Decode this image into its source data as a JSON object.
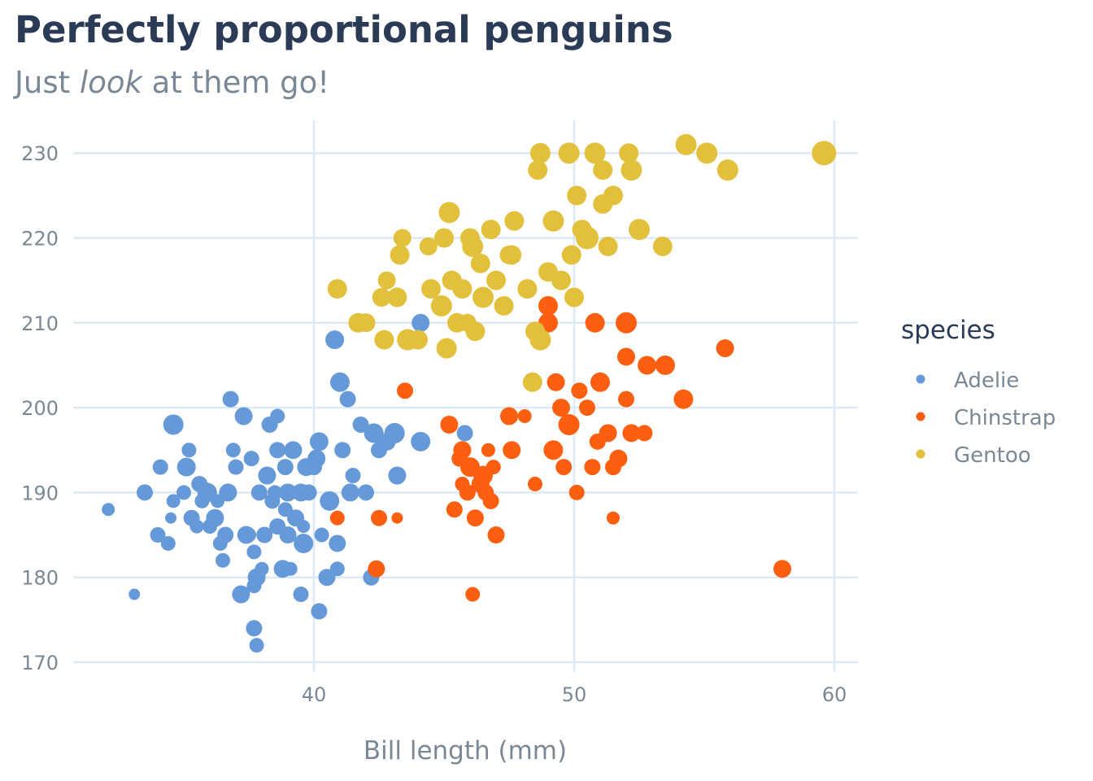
{
  "title": "Perfectly proportional penguins",
  "subtitle": {
    "pre": "Just ",
    "em": "look",
    "post": " at them go!"
  },
  "colors": {
    "grid": "#dce9f6",
    "text": "#7a8896",
    "title": "#2b3a55"
  },
  "chart_data": {
    "type": "scatter",
    "xlabel": "Bill length (mm)",
    "ylabel": "",
    "xlim": [
      31,
      61
    ],
    "ylim": [
      169,
      234
    ],
    "x_ticks": [
      40,
      50,
      60
    ],
    "y_ticks": [
      170,
      180,
      190,
      200,
      210,
      220,
      230
    ],
    "grid": true,
    "legend": {
      "title": "species",
      "position": "right"
    },
    "series": [
      {
        "name": "Adelie",
        "color": "#6699d8",
        "points": [
          [
            32.1,
            188,
            8
          ],
          [
            33.1,
            178,
            7
          ],
          [
            33.5,
            190,
            10
          ],
          [
            34.0,
            185,
            9.5
          ],
          [
            34.1,
            193,
            9.5
          ],
          [
            34.4,
            184,
            9
          ],
          [
            34.5,
            187,
            7
          ],
          [
            34.6,
            189,
            8.5
          ],
          [
            34.6,
            198,
            12.5
          ],
          [
            35.0,
            190,
            9
          ],
          [
            35.1,
            193,
            11.5
          ],
          [
            35.2,
            195,
            9
          ],
          [
            35.3,
            187,
            10
          ],
          [
            35.5,
            186,
            8.5
          ],
          [
            35.6,
            191,
            10
          ],
          [
            35.7,
            189,
            9
          ],
          [
            35.9,
            190,
            12
          ],
          [
            36.0,
            186,
            9
          ],
          [
            36.2,
            187,
            11
          ],
          [
            36.3,
            189,
            8.5
          ],
          [
            36.4,
            184,
            9
          ],
          [
            36.5,
            182,
            9
          ],
          [
            36.6,
            185,
            10
          ],
          [
            36.7,
            190,
            11
          ],
          [
            36.9,
            195,
            9
          ],
          [
            37.0,
            193,
            9.5
          ],
          [
            37.2,
            178,
            11
          ],
          [
            37.3,
            199,
            11
          ],
          [
            37.5,
            185,
            9
          ],
          [
            37.6,
            194,
            9.5
          ],
          [
            37.7,
            183,
            9
          ],
          [
            37.8,
            180,
            11
          ],
          [
            37.9,
            190,
            10
          ],
          [
            38.0,
            181,
            8.5
          ],
          [
            38.1,
            185,
            10
          ],
          [
            38.2,
            192,
            11
          ],
          [
            38.3,
            198,
            10
          ],
          [
            38.4,
            189,
            9.5
          ],
          [
            38.5,
            190,
            9
          ],
          [
            38.6,
            195,
            10
          ],
          [
            38.8,
            181,
            11
          ],
          [
            38.9,
            188,
            9
          ],
          [
            39.0,
            185,
            10.5
          ],
          [
            39.1,
            181,
            8.5
          ],
          [
            39.2,
            195,
            11
          ],
          [
            39.3,
            187,
            10.5
          ],
          [
            39.5,
            178,
            9.5
          ],
          [
            39.6,
            184,
            12
          ],
          [
            39.7,
            193,
            11
          ],
          [
            39.8,
            190,
            10
          ],
          [
            40.0,
            193,
            10
          ],
          [
            40.2,
            196,
            11.5
          ],
          [
            40.3,
            185,
            9
          ],
          [
            40.5,
            180,
            10.5
          ],
          [
            40.6,
            189,
            12
          ],
          [
            40.8,
            208,
            11.5
          ],
          [
            40.9,
            184,
            10.5
          ],
          [
            41.0,
            203,
            12
          ],
          [
            41.1,
            195,
            10
          ],
          [
            41.3,
            201,
            10
          ],
          [
            41.5,
            192,
            9.5
          ],
          [
            41.8,
            198,
            10
          ],
          [
            42.0,
            190,
            10
          ],
          [
            42.3,
            197,
            12
          ],
          [
            42.5,
            195,
            10
          ],
          [
            42.8,
            196,
            11
          ],
          [
            43.1,
            197,
            12.5
          ],
          [
            43.2,
            192,
            11
          ],
          [
            44.1,
            210,
            11
          ],
          [
            44.1,
            196,
            12
          ],
          [
            45.8,
            197,
            10
          ],
          [
            37.7,
            179,
            9
          ],
          [
            36.8,
            201,
            10
          ],
          [
            38.9,
            193,
            10
          ],
          [
            39.0,
            190,
            11
          ],
          [
            40.1,
            194,
            11
          ],
          [
            41.4,
            190,
            11
          ],
          [
            39.5,
            190,
            11
          ],
          [
            36.7,
            190,
            8
          ],
          [
            37.4,
            185,
            11
          ],
          [
            38.6,
            186,
            10
          ],
          [
            37.7,
            174,
            10
          ],
          [
            37.8,
            172,
            9
          ],
          [
            40.2,
            176,
            10
          ],
          [
            38.6,
            199,
            9
          ],
          [
            39.6,
            186,
            8
          ],
          [
            40.9,
            181,
            9
          ],
          [
            42.2,
            180,
            10
          ]
        ]
      },
      {
        "name": "Chinstrap",
        "color": "#fd5f11",
        "points": [
          [
            40.9,
            187,
            9
          ],
          [
            42.4,
            181,
            10.5
          ],
          [
            42.5,
            187,
            10
          ],
          [
            43.2,
            187,
            7
          ],
          [
            43.5,
            202,
            10
          ],
          [
            45.2,
            198,
            11
          ],
          [
            45.4,
            188,
            10
          ],
          [
            45.6,
            194,
            10
          ],
          [
            45.7,
            195,
            11
          ],
          [
            45.9,
            190,
            10
          ],
          [
            46.0,
            193,
            12
          ],
          [
            46.1,
            178,
            9
          ],
          [
            46.2,
            187,
            10.5
          ],
          [
            46.4,
            191,
            11
          ],
          [
            46.5,
            192,
            12
          ],
          [
            46.7,
            195,
            8.5
          ],
          [
            46.8,
            189,
            10
          ],
          [
            47.0,
            185,
            10.5
          ],
          [
            47.5,
            199,
            11
          ],
          [
            47.6,
            195,
            11
          ],
          [
            48.1,
            199,
            8.5
          ],
          [
            48.5,
            191,
            9
          ],
          [
            49.0,
            212,
            12
          ],
          [
            49.0,
            210,
            12
          ],
          [
            49.2,
            195,
            12
          ],
          [
            49.3,
            203,
            11
          ],
          [
            49.5,
            200,
            11
          ],
          [
            49.6,
            193,
            10
          ],
          [
            49.8,
            198,
            13
          ],
          [
            50.1,
            190,
            9.5
          ],
          [
            50.2,
            202,
            10
          ],
          [
            50.5,
            200,
            10
          ],
          [
            50.7,
            193,
            10
          ],
          [
            50.8,
            210,
            12
          ],
          [
            51.0,
            203,
            12
          ],
          [
            51.3,
            197,
            11
          ],
          [
            51.5,
            193,
            10
          ],
          [
            51.7,
            194,
            11
          ],
          [
            52.0,
            210,
            13
          ],
          [
            52.0,
            206,
            11
          ],
          [
            52.2,
            197,
            11
          ],
          [
            52.7,
            197,
            10
          ],
          [
            52.8,
            205,
            11.5
          ],
          [
            53.5,
            205,
            12
          ],
          [
            54.2,
            201,
            12
          ],
          [
            55.8,
            207,
            11
          ],
          [
            58.0,
            181,
            11
          ],
          [
            45.7,
            191,
            9
          ],
          [
            50.9,
            196,
            10
          ],
          [
            51.5,
            187,
            8
          ],
          [
            52.0,
            201,
            10
          ],
          [
            46.9,
            193,
            9
          ],
          [
            46.6,
            190,
            10
          ]
        ]
      },
      {
        "name": "Gentoo",
        "color": "#e3c03b",
        "points": [
          [
            40.9,
            214,
            12
          ],
          [
            41.7,
            210,
            12
          ],
          [
            42.0,
            210,
            11.5
          ],
          [
            42.6,
            213,
            11.5
          ],
          [
            42.7,
            208,
            12
          ],
          [
            42.8,
            215,
            11
          ],
          [
            43.2,
            213,
            12
          ],
          [
            43.3,
            218,
            12
          ],
          [
            43.4,
            220,
            11
          ],
          [
            43.6,
            208,
            13
          ],
          [
            44.0,
            208,
            12
          ],
          [
            44.4,
            219,
            11
          ],
          [
            44.5,
            214,
            12
          ],
          [
            44.9,
            212,
            13
          ],
          [
            45.0,
            220,
            12
          ],
          [
            45.1,
            207,
            12.5
          ],
          [
            45.2,
            223,
            13
          ],
          [
            45.3,
            215,
            12
          ],
          [
            45.5,
            210,
            12
          ],
          [
            45.7,
            214,
            12
          ],
          [
            46.1,
            219,
            13
          ],
          [
            46.2,
            209,
            12
          ],
          [
            46.4,
            217,
            12
          ],
          [
            46.5,
            213,
            13
          ],
          [
            46.8,
            221,
            12
          ],
          [
            47.0,
            215,
            12
          ],
          [
            47.3,
            212,
            12
          ],
          [
            47.5,
            218,
            11.5
          ],
          [
            47.7,
            222,
            12
          ],
          [
            48.2,
            214,
            12
          ],
          [
            48.4,
            203,
            12
          ],
          [
            48.5,
            209,
            12
          ],
          [
            48.7,
            208,
            13
          ],
          [
            49.0,
            216,
            12
          ],
          [
            49.2,
            222,
            13
          ],
          [
            49.5,
            215,
            12
          ],
          [
            49.8,
            230,
            13
          ],
          [
            50.0,
            213,
            12
          ],
          [
            50.1,
            225,
            12
          ],
          [
            50.5,
            220,
            14
          ],
          [
            50.8,
            230,
            13
          ],
          [
            51.1,
            228,
            12
          ],
          [
            51.3,
            219,
            12
          ],
          [
            51.5,
            225,
            12
          ],
          [
            52.1,
            230,
            12
          ],
          [
            52.2,
            228,
            13
          ],
          [
            52.5,
            221,
            13
          ],
          [
            53.4,
            219,
            12
          ],
          [
            54.3,
            231,
            13
          ],
          [
            55.1,
            230,
            13
          ],
          [
            55.9,
            228,
            13
          ],
          [
            59.6,
            230,
            15
          ],
          [
            48.7,
            230,
            12.5
          ],
          [
            46.0,
            220,
            12
          ],
          [
            47.6,
            218,
            12
          ],
          [
            49.9,
            218,
            12
          ],
          [
            51.1,
            224,
            12
          ],
          [
            45.9,
            210,
            11
          ],
          [
            50.3,
            221,
            12
          ],
          [
            48.6,
            228,
            12
          ]
        ]
      }
    ]
  }
}
